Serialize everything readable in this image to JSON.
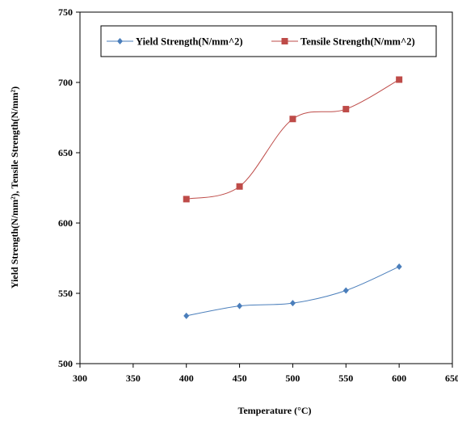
{
  "chart_data": {
    "type": "line",
    "title": "",
    "xlabel": "Temperature (°C)",
    "ylabel": "Yield Strength(N/mm²), Tensile Strength(N/mm²)",
    "xlim": [
      300,
      650
    ],
    "ylim": [
      500,
      750
    ],
    "xticks": [
      300,
      350,
      400,
      450,
      500,
      550,
      600,
      650
    ],
    "yticks": [
      500,
      550,
      600,
      650,
      700,
      750
    ],
    "grid": false,
    "legend_position": "top",
    "x": [
      400,
      450,
      500,
      550,
      600
    ],
    "series": [
      {
        "name": "Yield Strength(N/mm^2)",
        "values": [
          534,
          541,
          543,
          552,
          569
        ],
        "color": "#4a7ebb",
        "marker": "diamond"
      },
      {
        "name": "Tensile Strength(N/mm^2)",
        "values": [
          617,
          626,
          674,
          681,
          702
        ],
        "color": "#be4b48",
        "marker": "square"
      }
    ]
  }
}
